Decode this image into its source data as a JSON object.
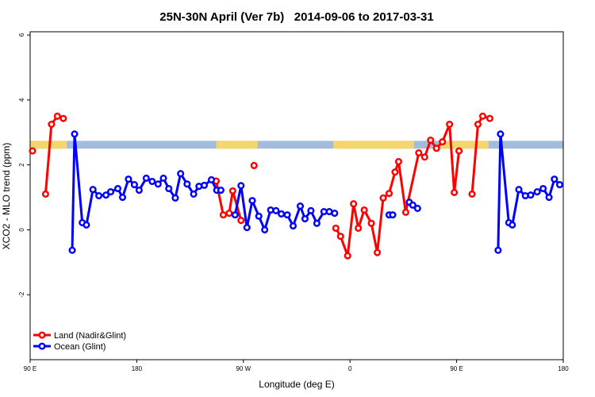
{
  "chart_data": {
    "type": "line",
    "title": "25N-30N April (Ver 7b)   2014-09-06 to 2017-03-31",
    "x_label": "Longitude (deg E)",
    "y_label": "XCO2 - MLO trend (ppm)",
    "xlim": [
      90,
      540
    ],
    "xticks": [
      {
        "value": 90,
        "label": "90 E"
      },
      {
        "value": 180,
        "label": "180"
      },
      {
        "value": 270,
        "label": "90 W"
      },
      {
        "value": 360,
        "label": "0"
      },
      {
        "value": 450,
        "label": "90 E"
      },
      {
        "value": 540,
        "label": "180"
      }
    ],
    "ylim": [
      -4,
      6.1
    ],
    "yticks": [
      -2,
      0,
      2,
      4,
      6
    ],
    "legend": "bottom-left",
    "band": {
      "ylim": [
        2.5,
        2.74
      ],
      "ocean_color": "#a3bbdc",
      "land_color": "#f6d56f",
      "land": [
        [
          90,
          121
        ],
        [
          247,
          282
        ],
        [
          346,
          414
        ],
        [
          436,
          477
        ]
      ]
    },
    "series": [
      {
        "name": "Land (Nadir&Glint)",
        "color": "#ff0000",
        "x": [
          92,
          null,
          103,
          108,
          113,
          118,
          null,
          247,
          253,
          258,
          261,
          268,
          null,
          279,
          null,
          348,
          352,
          358,
          363,
          367,
          372,
          378,
          383,
          388,
          393,
          398,
          401,
          407,
          418,
          423,
          428,
          433,
          438,
          444,
          448,
          452,
          null,
          463,
          468,
          472,
          478
        ],
        "values": [
          2.43,
          null,
          1.1,
          3.25,
          3.5,
          3.43,
          null,
          1.5,
          0.46,
          0.51,
          1.2,
          0.29,
          null,
          1.98,
          null,
          0.05,
          -0.2,
          -0.8,
          0.8,
          0.05,
          0.61,
          0.2,
          -0.7,
          0.98,
          1.12,
          1.78,
          2.1,
          0.54,
          2.37,
          2.24,
          2.76,
          2.51,
          2.71,
          3.25,
          1.15,
          2.43,
          null,
          1.1,
          3.25,
          3.5,
          3.43
        ]
      },
      {
        "name": "Ocean (Glint)",
        "color": "#0000ff",
        "x": [
          125.5,
          127.5,
          134,
          137.5,
          143,
          148,
          154,
          158,
          164,
          168,
          173,
          178,
          182,
          188,
          193,
          198,
          202.5,
          207,
          212.5,
          217,
          222.5,
          228,
          232.5,
          237,
          243,
          247.5,
          251,
          null,
          263,
          268,
          273,
          277.5,
          283,
          288,
          293,
          297.5,
          302,
          307,
          312,
          318,
          322,
          327,
          332,
          338,
          342.5,
          347,
          null,
          393,
          396,
          null,
          410,
          413,
          417,
          null,
          485,
          487,
          494,
          497,
          502.5,
          508,
          512.5,
          518,
          523,
          528,
          532.5,
          537
        ],
        "values": [
          -0.63,
          2.95,
          0.22,
          0.15,
          1.24,
          1.05,
          1.07,
          1.17,
          1.27,
          1.0,
          1.56,
          1.39,
          1.22,
          1.59,
          1.49,
          1.41,
          1.59,
          1.27,
          0.98,
          1.73,
          1.41,
          1.1,
          1.34,
          1.37,
          1.54,
          1.22,
          1.22,
          null,
          0.46,
          1.36,
          0.07,
          0.9,
          0.42,
          0,
          0.61,
          0.59,
          0.49,
          0.46,
          0.12,
          0.73,
          0.34,
          0.59,
          0.2,
          0.56,
          0.56,
          0.51,
          null,
          0.46,
          0.46,
          null,
          0.85,
          0.76,
          0.66,
          null,
          -0.63,
          2.95,
          0.22,
          0.15,
          1.24,
          1.05,
          1.07,
          1.17,
          1.27,
          1.0,
          1.56,
          1.39
        ]
      }
    ]
  }
}
